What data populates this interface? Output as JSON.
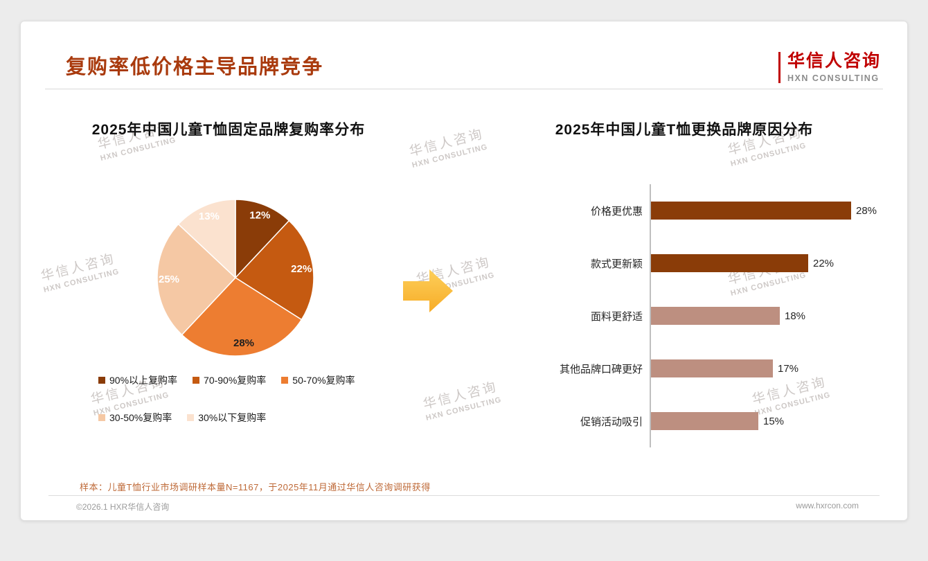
{
  "page": {
    "title": "复购率低价格主导品牌竞争",
    "logo": {
      "cn": "华信人咨询",
      "en": "HXN CONSULTING"
    },
    "watermark": {
      "cn": "华信人咨询",
      "en": "HXN CONSULTING"
    },
    "note": "样本：儿童T恤行业市场调研样本量N=1167，于2025年11月通过华信人咨询调研获得",
    "footer": {
      "left": "©2026.1 HXR华信人咨询",
      "right": "www.hxrcon.com"
    }
  },
  "chart_data": [
    {
      "type": "pie",
      "title": "2025年中国儿童T恤固定品牌复购率分布",
      "labels": [
        "90%以上复购率",
        "70-90%复购率",
        "50-70%复购率",
        "30-50%复购率",
        "30%以下复购率"
      ],
      "values": [
        12,
        22,
        28,
        25,
        13
      ],
      "colors": [
        "#8A3C08",
        "#C55A11",
        "#ED7D31",
        "#F5C8A4",
        "#FBE2CF"
      ],
      "value_label_format": "percent",
      "value_label_colors": [
        "#ffffff",
        "#ffffff",
        "#1f1f1f",
        "#ffffff",
        "#ffffff"
      ],
      "legend_position": "bottom"
    },
    {
      "type": "bar",
      "orientation": "horizontal",
      "title": "2025年中国儿童T恤更换品牌原因分布",
      "categories": [
        "价格更优惠",
        "款式更新颖",
        "面料更舒适",
        "其他品牌口碑更好",
        "促销活动吸引"
      ],
      "values": [
        28,
        22,
        18,
        17,
        15
      ],
      "colors": [
        "#8A3C08",
        "#8A3C08",
        "#BD8F80",
        "#BD8F80",
        "#BD8F80"
      ],
      "xlim": [
        0,
        30
      ],
      "grid": false,
      "axis_color": "#BFBFBF"
    }
  ],
  "arrow_color_top": "#FDCF5B",
  "arrow_color_bottom": "#F7AC27"
}
